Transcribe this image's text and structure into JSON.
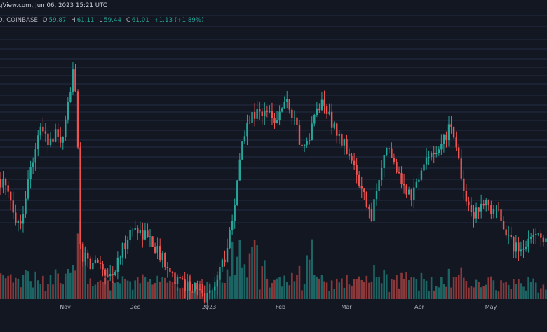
{
  "header": {
    "line1_text": "gView.com, Jun 06, 2023 15:21 UTC",
    "exchange_text": "D, COINBASE",
    "ohlc": {
      "open_label": "O",
      "open_value": "59.87",
      "high_label": "H",
      "high_value": "61.11",
      "low_label": "L",
      "low_value": "59.44",
      "close_label": "C",
      "close_value": "61.01",
      "change_text": "+1.13 (+1.89%)"
    }
  },
  "colors": {
    "background": "#131722",
    "grid": "#2a3b5c",
    "up": "#26a69a",
    "down": "#ef5350",
    "axis_text": "#b2b5be"
  },
  "chart_data": {
    "type": "candlestick",
    "interval": "1D",
    "x_tick_labels": [
      "Nov",
      "Dec",
      "2023",
      "Feb",
      "Mar",
      "Apr",
      "May"
    ],
    "price_range": [
      15,
      70
    ],
    "last_bar": {
      "open": 59.87,
      "high": 61.11,
      "low": 59.44,
      "close": 61.01
    },
    "grid": true,
    "volume_panel": true
  }
}
